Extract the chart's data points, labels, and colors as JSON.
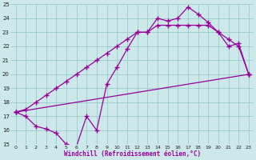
{
  "bg_color": "#cce8e8",
  "grid_color": "#99cccc",
  "line_color": "#990099",
  "marker": "+",
  "markersize": 4,
  "markeredgewidth": 1.0,
  "linewidth": 0.9,
  "xlabel": "Windchill (Refroidissement éolien,°C)",
  "xlim": [
    -0.5,
    23.5
  ],
  "ylim": [
    15,
    25
  ],
  "xticks": [
    0,
    1,
    2,
    3,
    4,
    5,
    6,
    7,
    8,
    9,
    10,
    11,
    12,
    13,
    14,
    15,
    16,
    17,
    18,
    19,
    20,
    21,
    22,
    23
  ],
  "yticks": [
    15,
    16,
    17,
    18,
    19,
    20,
    21,
    22,
    23,
    24,
    25
  ],
  "line1_x": [
    0,
    1,
    2,
    3,
    4,
    5,
    6,
    7,
    8,
    9,
    10,
    11,
    12,
    13,
    14,
    15,
    16,
    17,
    18,
    19,
    20,
    21,
    22,
    23
  ],
  "line1_y": [
    17.3,
    17.0,
    16.3,
    16.1,
    15.8,
    15.0,
    14.85,
    17.0,
    16.0,
    19.3,
    20.5,
    21.8,
    23.0,
    23.0,
    24.0,
    23.8,
    24.0,
    24.8,
    24.3,
    23.7,
    23.0,
    22.0,
    22.2,
    20.0
  ],
  "line2_x": [
    0,
    1,
    2,
    3,
    4,
    5,
    6,
    7,
    8,
    9,
    10,
    11,
    12,
    13,
    14,
    15,
    16,
    17,
    18,
    19,
    20,
    21,
    22,
    23
  ],
  "line2_y": [
    17.3,
    17.5,
    18.0,
    18.5,
    19.0,
    19.5,
    20.0,
    20.5,
    21.0,
    21.5,
    22.0,
    22.5,
    23.0,
    23.0,
    23.5,
    23.5,
    23.5,
    23.5,
    23.5,
    23.5,
    23.0,
    22.5,
    22.0,
    20.0
  ],
  "line3_x": [
    0,
    23
  ],
  "line3_y": [
    17.3,
    20.0
  ]
}
